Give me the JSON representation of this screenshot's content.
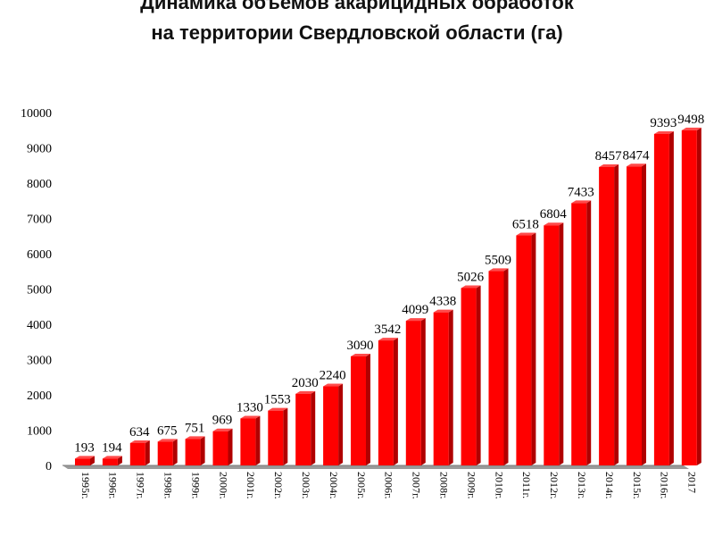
{
  "chart_data": {
    "type": "bar",
    "title_lines": [
      "Динамика объемов акарицидных обработок",
      "на территории Свердловской области (га)"
    ],
    "categories": [
      "1995г.",
      "1996г.",
      "1997г.",
      "1998г.",
      "1999г.",
      "2000г.",
      "2001г.",
      "2002г.",
      "2003г.",
      "2004г.",
      "2005г.",
      "2006г.",
      "2007г.",
      "2008г.",
      "2009г.",
      "2010г.",
      "2011г.",
      "2012г.",
      "2013г.",
      "2014г.",
      "2015г.",
      "2016г.",
      "2017"
    ],
    "values": [
      193,
      194,
      634,
      675,
      751,
      969,
      1330,
      1553,
      2030,
      2240,
      3090,
      3542,
      4099,
      4338,
      5026,
      5509,
      6518,
      6804,
      7433,
      8457,
      8474,
      9393,
      9498
    ],
    "data_labels": [
      "193",
      "194",
      "634",
      "675",
      "751",
      "969",
      "1330",
      "1553",
      "2030",
      "2240",
      "3090",
      "3542",
      "4099",
      "4338",
      "5026",
      "5509",
      "6518",
      "6804",
      "7433",
      "8457",
      "8474",
      "9393",
      "9498"
    ],
    "yticks": [
      "0",
      "1000",
      "2000",
      "3000",
      "4000",
      "5000",
      "6000",
      "7000",
      "8000",
      "9000",
      "10000"
    ],
    "ylim": [
      0,
      10000
    ],
    "xlabel": "",
    "ylabel": "",
    "grid": false,
    "bar_color": "#ff0000",
    "bar_dark_color": "#b00000",
    "floor_color": "#9a9a9a"
  }
}
